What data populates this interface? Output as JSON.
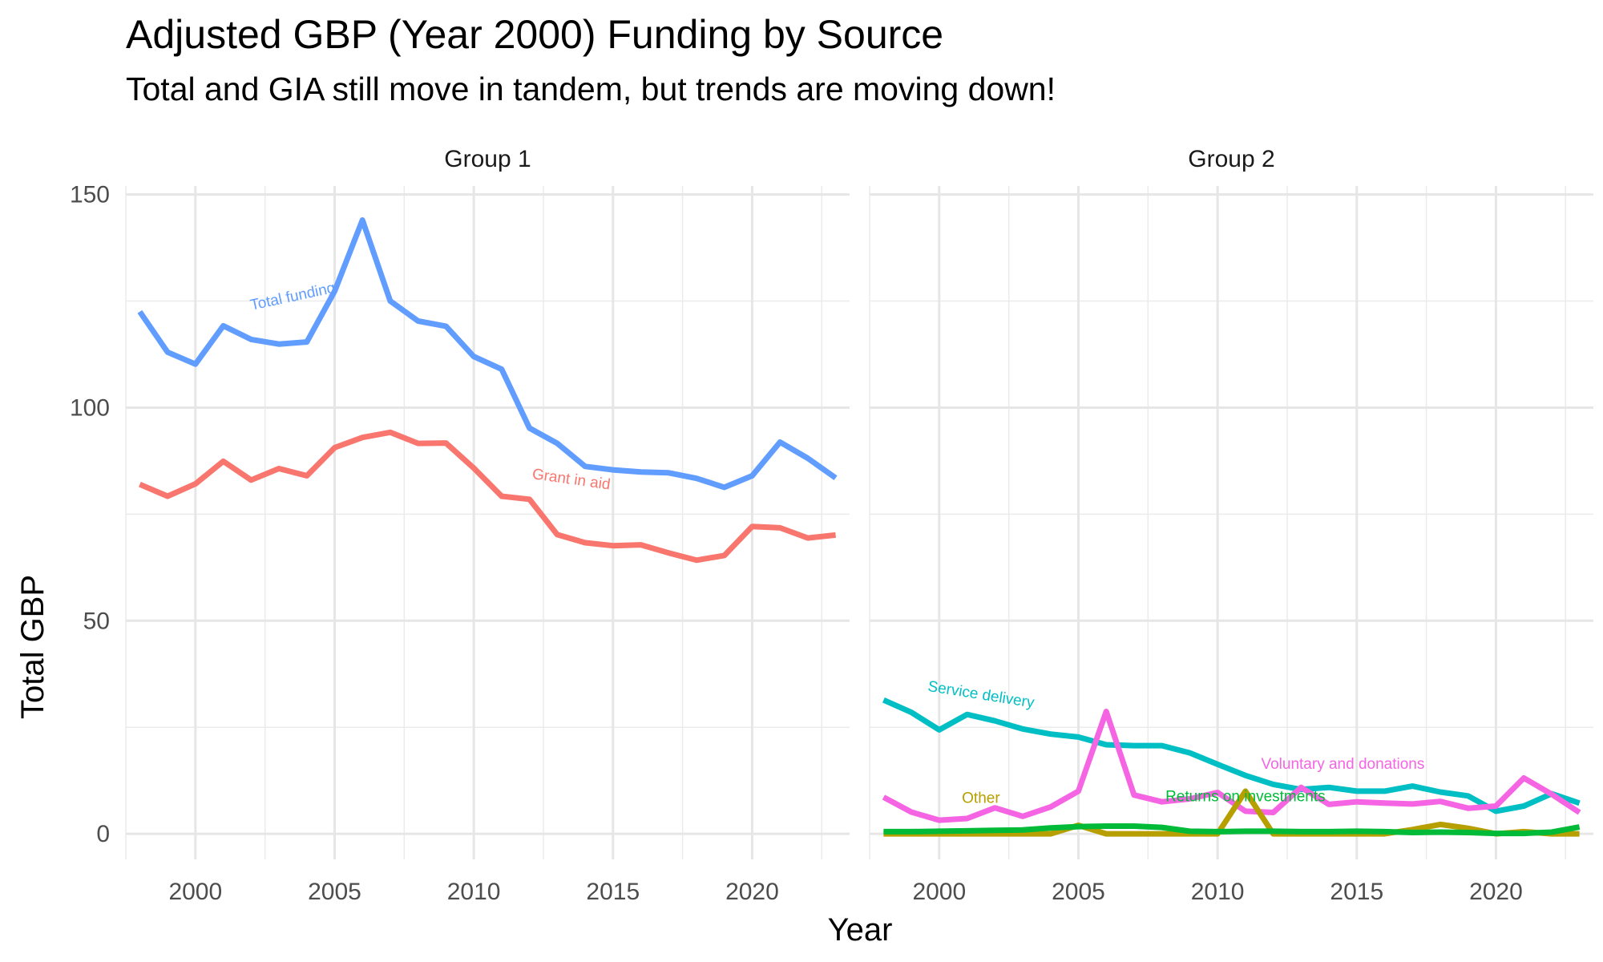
{
  "chart_data": {
    "type": "line",
    "title": "Adjusted GBP (Year 2000) Funding by Source",
    "subtitle": "Total and GIA still move in tandem, but trends are moving down!",
    "xlabel": "Year",
    "ylabel": "Total GBP",
    "xlim": [
      1997.5,
      2023.5
    ],
    "ylim": [
      -6,
      152
    ],
    "x_ticks": [
      2000,
      2005,
      2010,
      2015,
      2020
    ],
    "y_ticks": [
      0,
      50,
      100,
      150
    ],
    "grid": true,
    "legend": "none (direct labels)",
    "panels": [
      {
        "name": "Group 1",
        "series": [
          {
            "name": "Total funding",
            "color": "#619CFF",
            "x": [
              1998,
              1999,
              2000,
              2001,
              2002,
              2003,
              2004,
              2005,
              2006,
              2007,
              2008,
              2009,
              2010,
              2011,
              2012,
              2013,
              2014,
              2015,
              2016,
              2017,
              2018,
              2019,
              2020,
              2021,
              2022,
              2023
            ],
            "values": [
              122.5,
              113,
              110.2,
              119.2,
              116,
              114.9,
              115.4,
              127.3,
              144,
              125,
              120.3,
              119.1,
              112,
              109,
              95.2,
              91.6,
              86.2,
              85.4,
              84.9,
              84.7,
              83.4,
              81.3,
              84,
              91.9,
              88.1,
              83.5
            ],
            "label_x": 2003.5,
            "label_y": 125.9,
            "label_angle": -12
          },
          {
            "name": "Grant in aid",
            "color": "#F8766D",
            "x": [
              1998,
              1999,
              2000,
              2001,
              2002,
              2003,
              2004,
              2005,
              2006,
              2007,
              2008,
              2009,
              2010,
              2011,
              2012,
              2013,
              2014,
              2015,
              2016,
              2017,
              2018,
              2019,
              2020,
              2021,
              2022,
              2023
            ],
            "values": [
              82,
              79.2,
              82.1,
              87.4,
              83,
              85.7,
              84,
              90.6,
              93,
              94.2,
              91.6,
              91.7,
              85.8,
              79.2,
              78.5,
              70.2,
              68.3,
              67.6,
              67.8,
              65.9,
              64.2,
              65.3,
              72.1,
              71.8,
              69.4,
              70.1
            ],
            "label_x": 2013.5,
            "label_y": 83,
            "label_angle": 8
          }
        ]
      },
      {
        "name": "Group 2",
        "series": [
          {
            "name": "Service delivery",
            "color": "#00BFC4",
            "x": [
              1998,
              1999,
              2000,
              2001,
              2002,
              2003,
              2004,
              2005,
              2006,
              2007,
              2008,
              2009,
              2010,
              2011,
              2012,
              2013,
              2014,
              2015,
              2016,
              2017,
              2018,
              2019,
              2020,
              2021,
              2022,
              2023
            ],
            "values": [
              31.4,
              28.5,
              24.4,
              28,
              26.5,
              24.6,
              23.4,
              22.7,
              20.9,
              20.7,
              20.7,
              19,
              16.3,
              13.7,
              11.6,
              10.4,
              10.9,
              10,
              10,
              11.2,
              9.8,
              8.9,
              5.3,
              6.5,
              9.4,
              7.2
            ],
            "label_x": 2001.5,
            "label_y": 32.5,
            "label_angle": 9
          },
          {
            "name": "Voluntary and donations",
            "color": "#F564E3",
            "x": [
              1998,
              1999,
              2000,
              2001,
              2002,
              2003,
              2004,
              2005,
              2006,
              2007,
              2008,
              2009,
              2010,
              2011,
              2012,
              2013,
              2014,
              2015,
              2016,
              2017,
              2018,
              2019,
              2020,
              2021,
              2022,
              2023
            ],
            "values": [
              8.6,
              5.1,
              3.2,
              3.6,
              6.1,
              4.1,
              6.3,
              10,
              28.7,
              9.1,
              7.5,
              8.2,
              9.7,
              5.3,
              5,
              10.9,
              6.9,
              7.5,
              7.2,
              7,
              7.6,
              6,
              6.5,
              13.1,
              9.3,
              5
            ],
            "label_x": 2014.5,
            "label_y": 16.2,
            "label_angle": 0
          },
          {
            "name": "Other",
            "color": "#B79F00",
            "x": [
              1998,
              1999,
              2000,
              2001,
              2002,
              2003,
              2004,
              2005,
              2006,
              2007,
              2008,
              2009,
              2010,
              2011,
              2012,
              2013,
              2014,
              2015,
              2016,
              2017,
              2018,
              2019,
              2020,
              2021,
              2022,
              2023
            ],
            "values": [
              0,
              0,
              0,
              0,
              0,
              0,
              0,
              2,
              0,
              0,
              0,
              0,
              0,
              10,
              0,
              0,
              0,
              0,
              0,
              1,
              2.2,
              1.3,
              0,
              0.5,
              0,
              0
            ],
            "label_x": 2001.5,
            "label_y": 8.2,
            "label_angle": 0
          },
          {
            "name": "Returns on investments",
            "color": "#00BA38",
            "x": [
              1998,
              1999,
              2000,
              2001,
              2002,
              2003,
              2004,
              2005,
              2006,
              2007,
              2008,
              2009,
              2010,
              2011,
              2012,
              2013,
              2014,
              2015,
              2016,
              2017,
              2018,
              2019,
              2020,
              2021,
              2022,
              2023
            ],
            "values": [
              0.5,
              0.5,
              0.6,
              0.7,
              0.8,
              0.9,
              1.4,
              1.7,
              1.8,
              1.8,
              1.5,
              0.6,
              0.5,
              0.6,
              0.6,
              0.5,
              0.5,
              0.6,
              0.5,
              0.3,
              0.4,
              0.3,
              0.1,
              0.1,
              0.4,
              1.6
            ],
            "label_x": 2011,
            "label_y": 8.6,
            "label_angle": 0
          }
        ]
      }
    ]
  }
}
